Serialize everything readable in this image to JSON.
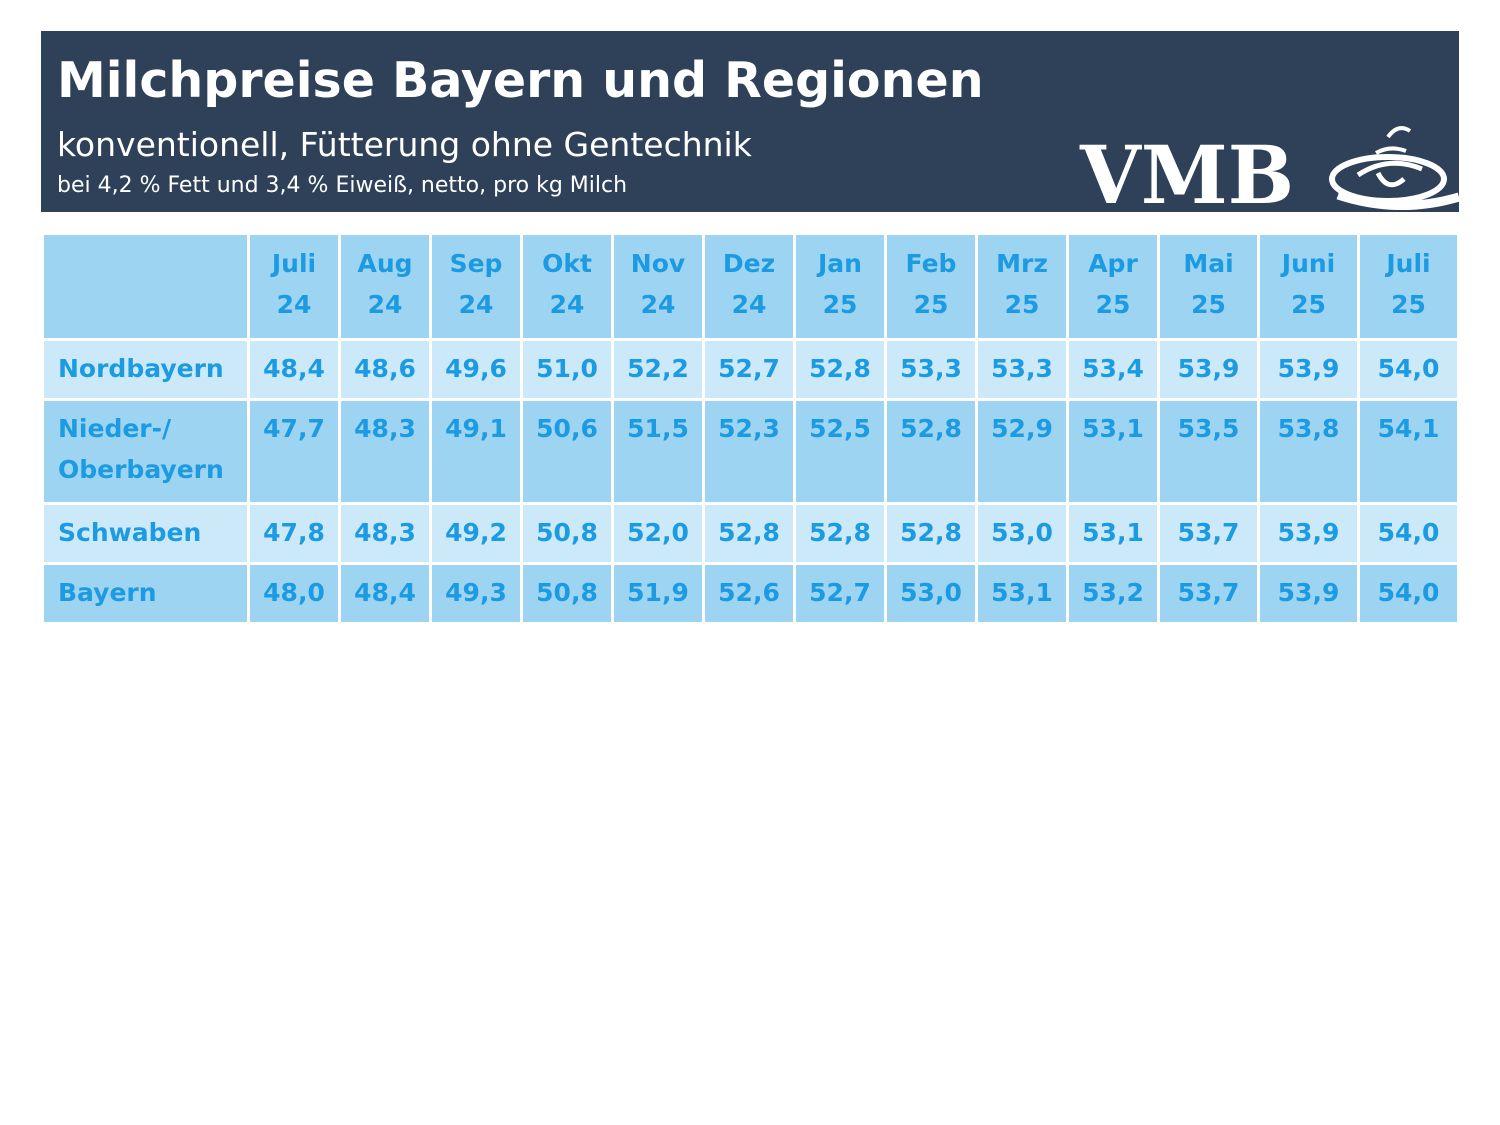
{
  "header": {
    "title": "Milchpreise Bayern und Regionen",
    "subtitle": "konventionell, Fütterung ohne Gentechnik",
    "note": "bei 4,2 % Fett und 3,4 % Eiweiß, netto, pro kg Milch",
    "logo_text": "VMB",
    "background_color": "#2e4159"
  },
  "colors": {
    "text": "#1c9ae2",
    "row_dark": "#9dd4f1",
    "row_light": "#cbe9f8"
  },
  "chart_data": {
    "type": "table",
    "title": "Milchpreise Bayern und Regionen",
    "subtitle": "konventionell, Fütterung ohne Gentechnik",
    "columns": [
      {
        "month": "Juli",
        "year": "24"
      },
      {
        "month": "Aug",
        "year": "24"
      },
      {
        "month": "Sep",
        "year": "24"
      },
      {
        "month": "Okt",
        "year": "24"
      },
      {
        "month": "Nov",
        "year": "24"
      },
      {
        "month": "Dez",
        "year": "24"
      },
      {
        "month": "Jan",
        "year": "25"
      },
      {
        "month": "Feb",
        "year": "25"
      },
      {
        "month": "Mrz",
        "year": "25"
      },
      {
        "month": "Apr",
        "year": "25"
      },
      {
        "month": "Mai",
        "year": "25"
      },
      {
        "month": "Juni",
        "year": "25"
      },
      {
        "month": "Juli",
        "year": "25"
      }
    ],
    "rows": [
      {
        "region": "Nordbayern",
        "values": [
          "48,4",
          "48,6",
          "49,6",
          "51,0",
          "52,2",
          "52,7",
          "52,8",
          "53,3",
          "53,3",
          "53,4",
          "53,9",
          "53,9",
          "54,0"
        ]
      },
      {
        "region_line1": "Nieder-/",
        "region_line2": "Oberbayern",
        "values": [
          "47,7",
          "48,3",
          "49,1",
          "50,6",
          "51,5",
          "52,3",
          "52,5",
          "52,8",
          "52,9",
          "53,1",
          "53,5",
          "53,8",
          "54,1"
        ]
      },
      {
        "region": "Schwaben",
        "values": [
          "47,8",
          "48,3",
          "49,2",
          "50,8",
          "52,0",
          "52,8",
          "52,8",
          "52,8",
          "53,0",
          "53,1",
          "53,7",
          "53,9",
          "54,0"
        ]
      },
      {
        "region": "Bayern",
        "values": [
          "48,0",
          "48,4",
          "49,3",
          "50,8",
          "51,9",
          "52,6",
          "52,7",
          "53,0",
          "53,1",
          "53,2",
          "53,7",
          "53,9",
          "54,0"
        ]
      }
    ]
  }
}
